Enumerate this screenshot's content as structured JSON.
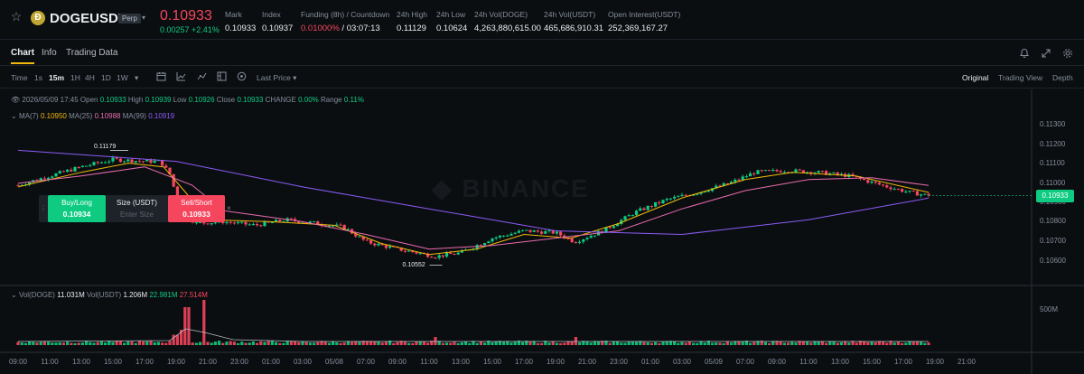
{
  "header": {
    "star_glyph": "☆",
    "coin_glyph": "Ð",
    "symbol": "DOGEUSDT",
    "badge": "Perp",
    "caret": "▾",
    "last_price": "0.10933",
    "change": "0.00257 +2.41%",
    "stats": [
      {
        "label": "Mark",
        "value": "0.10933"
      },
      {
        "label": "Index",
        "value": "0.10937"
      },
      {
        "label": "Funding (8h) / Countdown",
        "value_red": "0.01000%",
        "value": " / 03:07:13"
      },
      {
        "label": "24h High",
        "value": "0.11129"
      },
      {
        "label": "24h Low",
        "value": "0.10624"
      },
      {
        "label": "24h Vol(DOGE)",
        "value": "4,263,880,615.00"
      },
      {
        "label": "24h Vol(USDT)",
        "value": "465,686,910.31"
      },
      {
        "label": "Open Interest(USDT)",
        "value": "252,369,167.27"
      }
    ]
  },
  "tabs": [
    "Chart",
    "Info",
    "Trading Data"
  ],
  "toolbar": {
    "time_label": "Time",
    "intervals": [
      "1s",
      "15m",
      "1H",
      "4H",
      "1D",
      "1W"
    ],
    "active_interval": "15m",
    "price_type": "Last Price ▾",
    "views": [
      "Original",
      "Trading View",
      "Depth"
    ],
    "active_view": "Original"
  },
  "ohlc": {
    "date": "2026/05/09 17:45",
    "open_label": "Open",
    "open": "0.10933",
    "high_label": "High",
    "high": "0.10939",
    "low_label": "Low",
    "low": "0.10926",
    "close_label": "Close",
    "close": "0.10933",
    "change_label": "CHANGE",
    "change": "0.00%",
    "range_label": "Range",
    "range": "0.11%"
  },
  "ma": {
    "ma7_label": "MA(7)",
    "ma7": "0.10950",
    "ma25_label": "MA(25)",
    "ma25": "0.10988",
    "ma99_label": "MA(99)",
    "ma99": "0.10919"
  },
  "volume": {
    "vol_doge_label": "Vol(DOGE)",
    "vol_doge": "11.031M",
    "vol_usdt_label": "Vol(USDT)",
    "vol_usdt": "1.206M",
    "ma1": "22.981M",
    "ma2": "27.514M",
    "axis_label": "500M"
  },
  "order_widget": {
    "handle": "⋮",
    "buy_label": "Buy/Long",
    "buy_price": "0.10934",
    "size_label": "Size (USDT)",
    "size_placeholder": "Enter Size",
    "sell_label": "Sell/Short",
    "sell_price": "0.10933",
    "close": "×"
  },
  "watermark": "◆ BINANCE",
  "colors": {
    "up": "#0ecb81",
    "down": "#f6465d",
    "ma7": "#f0b90b",
    "ma25": "#e96bb0",
    "ma99": "#8a5cf6",
    "accent": "#f0b90b"
  },
  "chart_data": {
    "type": "candlestick",
    "interval": "15m",
    "y_ticks": [
      "0.11300",
      "0.11200",
      "0.11100",
      "0.11000",
      "0.10900",
      "0.10800",
      "0.10700",
      "0.10600"
    ],
    "ylim": [
      0.1052,
      0.1137
    ],
    "x_ticks": [
      "09:00",
      "11:00",
      "13:00",
      "15:00",
      "17:00",
      "19:00",
      "21:00",
      "23:00",
      "01:00",
      "03:00",
      "05/08",
      "07:00",
      "09:00",
      "11:00",
      "13:00",
      "15:00",
      "17:00",
      "19:00",
      "21:00",
      "23:00",
      "01:00",
      "03:00",
      "05/09",
      "07:00",
      "09:00",
      "11:00",
      "13:00",
      "15:00",
      "17:00",
      "19:00",
      "21:00"
    ],
    "current_price": "0.10933",
    "high_marker": {
      "label": "0.11179",
      "value": 0.11179,
      "tick_index": 3.2
    },
    "low_marker": {
      "label": "0.10552",
      "value": 0.10552,
      "tick_index": 13.3
    },
    "close_path": [
      [
        0,
        0.1099
      ],
      [
        1,
        0.1104
      ],
      [
        2,
        0.1109
      ],
      [
        3,
        0.1113
      ],
      [
        4,
        0.1112
      ],
      [
        4.5,
        0.1112
      ],
      [
        4.8,
        0.1105
      ],
      [
        5.1,
        0.1088
      ],
      [
        5.6,
        0.1078
      ],
      [
        6.5,
        0.1079
      ],
      [
        7.5,
        0.1077
      ],
      [
        8.5,
        0.108
      ],
      [
        9.5,
        0.1078
      ],
      [
        10.3,
        0.1076
      ],
      [
        11,
        0.1068
      ],
      [
        12,
        0.1064
      ],
      [
        13.2,
        0.106
      ],
      [
        14,
        0.1062
      ],
      [
        15,
        0.107
      ],
      [
        16,
        0.1074
      ],
      [
        17,
        0.1073
      ],
      [
        17.6,
        0.1068
      ],
      [
        18.5,
        0.1074
      ],
      [
        19.5,
        0.1084
      ],
      [
        20.5,
        0.1091
      ],
      [
        21.5,
        0.1095
      ],
      [
        22.5,
        0.11
      ],
      [
        23.3,
        0.1106
      ],
      [
        24.3,
        0.1107
      ],
      [
        25.3,
        0.1106
      ],
      [
        26.3,
        0.1104
      ],
      [
        27.3,
        0.1099
      ],
      [
        28.2,
        0.1095
      ],
      [
        28.8,
        0.10933
      ]
    ],
    "ma_series": [
      {
        "name": "MA(7)",
        "path": [
          [
            0,
            0.1098
          ],
          [
            2,
            0.1106
          ],
          [
            3.5,
            0.1111
          ],
          [
            4.6,
            0.1109
          ],
          [
            5.3,
            0.1095
          ],
          [
            6,
            0.108
          ],
          [
            8,
            0.1079
          ],
          [
            10,
            0.1077
          ],
          [
            11.5,
            0.1067
          ],
          [
            13,
            0.1061
          ],
          [
            14.5,
            0.1064
          ],
          [
            16,
            0.1072
          ],
          [
            17.5,
            0.107
          ],
          [
            19,
            0.1078
          ],
          [
            21,
            0.1092
          ],
          [
            23,
            0.1102
          ],
          [
            24.5,
            0.1106
          ],
          [
            26.5,
            0.1104
          ],
          [
            28.8,
            0.1095
          ]
        ]
      },
      {
        "name": "MA(25)",
        "path": [
          [
            0,
            0.11
          ],
          [
            2,
            0.1104
          ],
          [
            4,
            0.1109
          ],
          [
            5.5,
            0.1099
          ],
          [
            6.5,
            0.1085
          ],
          [
            9,
            0.1079
          ],
          [
            11,
            0.1072
          ],
          [
            13,
            0.1064
          ],
          [
            15,
            0.1066
          ],
          [
            17,
            0.107
          ],
          [
            19,
            0.1074
          ],
          [
            21,
            0.1086
          ],
          [
            23,
            0.1096
          ],
          [
            25,
            0.1102
          ],
          [
            27,
            0.1103
          ],
          [
            28.8,
            0.10988
          ]
        ]
      },
      {
        "name": "MA(99)",
        "path": [
          [
            0,
            0.1118
          ],
          [
            5,
            0.1112
          ],
          [
            9,
            0.1098
          ],
          [
            13,
            0.1086
          ],
          [
            17,
            0.1074
          ],
          [
            21,
            0.1072
          ],
          [
            25,
            0.108
          ],
          [
            28.8,
            0.10919
          ]
        ]
      }
    ]
  }
}
